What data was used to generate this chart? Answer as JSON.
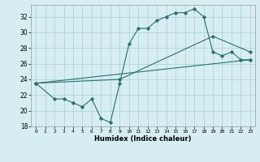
{
  "title": "",
  "xlabel": "Humidex (Indice chaleur)",
  "xlim": [
    -0.5,
    23.5
  ],
  "ylim": [
    18,
    33.5
  ],
  "yticks": [
    18,
    20,
    22,
    24,
    26,
    28,
    30,
    32
  ],
  "xticks": [
    0,
    1,
    2,
    3,
    4,
    5,
    6,
    7,
    8,
    9,
    10,
    11,
    12,
    13,
    14,
    15,
    16,
    17,
    18,
    19,
    20,
    21,
    22,
    23
  ],
  "bg_color": "#d6eef2",
  "grid_color": "#b0d4d8",
  "line_color": "#2d6e6e",
  "figsize": [
    3.2,
    2.0
  ],
  "dpi": 100,
  "series": [
    {
      "x": [
        0,
        2,
        3,
        4,
        5,
        6,
        7,
        8,
        9,
        10,
        11,
        12,
        13,
        14,
        15,
        16,
        17,
        18,
        19,
        20,
        21,
        22,
        23
      ],
      "y": [
        23.5,
        21.5,
        21.5,
        21.0,
        20.5,
        21.5,
        19.0,
        18.5,
        23.5,
        28.5,
        30.5,
        30.5,
        31.5,
        32.0,
        32.5,
        32.5,
        33.0,
        32.0,
        27.5,
        27.0,
        27.5,
        26.5,
        26.5
      ]
    },
    {
      "x": [
        0,
        23
      ],
      "y": [
        23.5,
        26.5
      ]
    },
    {
      "x": [
        0,
        9,
        19,
        23
      ],
      "y": [
        23.5,
        24.0,
        29.5,
        27.5
      ]
    }
  ]
}
